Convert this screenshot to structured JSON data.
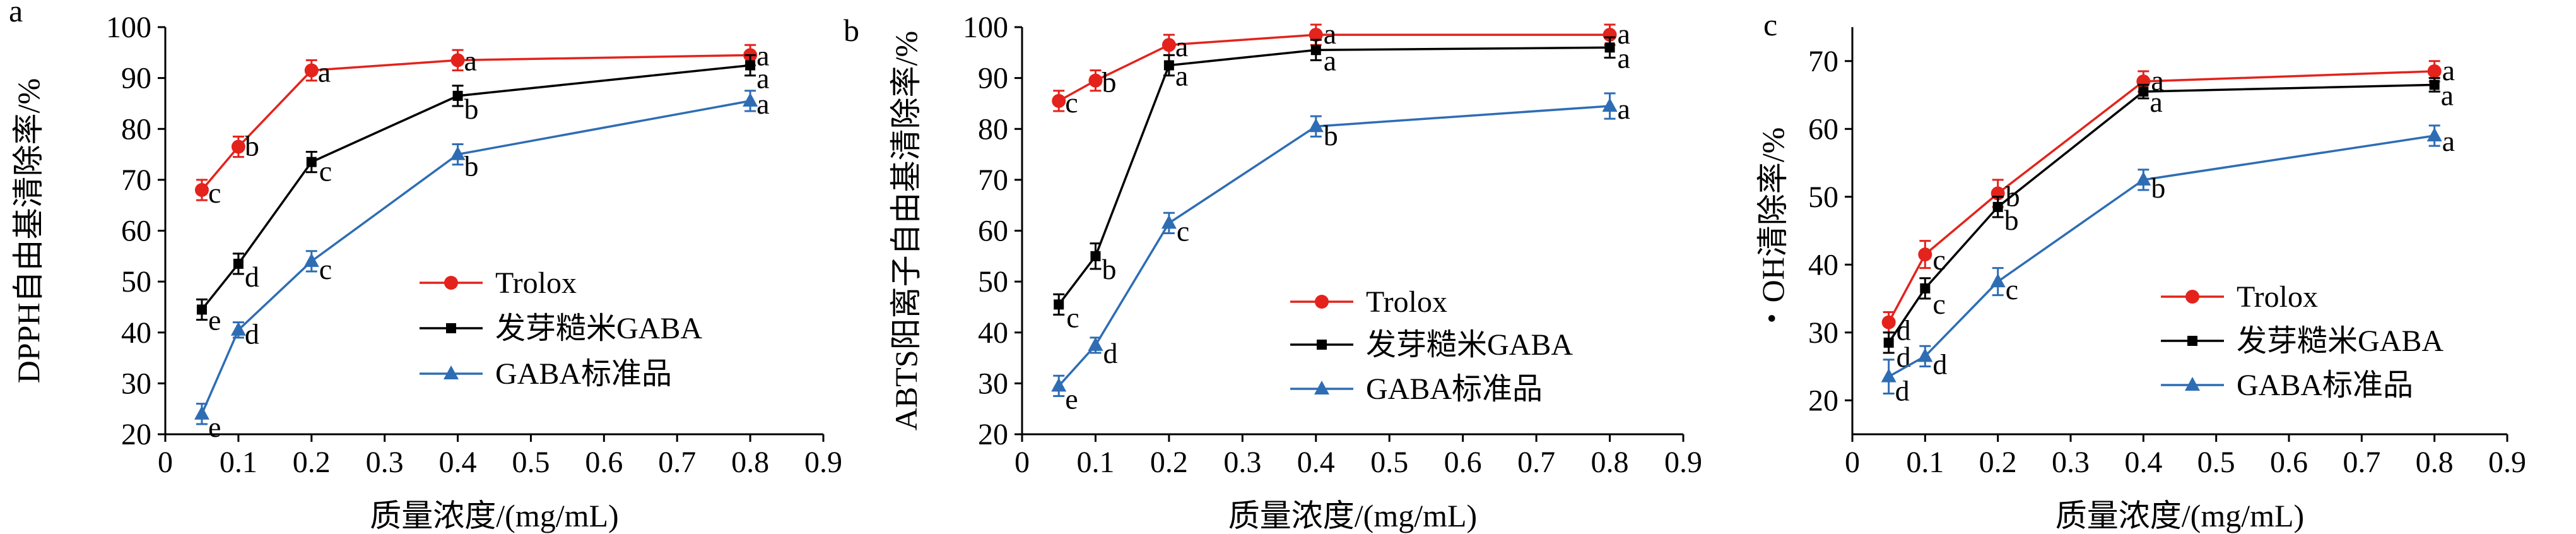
{
  "colors": {
    "Trolox": "#e3231c",
    "sprout": "#000000",
    "gaba": "#2e6db4"
  },
  "legend": [
    "Trolox",
    "发芽糙米GABA",
    "GABA标准品"
  ],
  "chart_data": [
    {
      "type": "line",
      "panel_label": "a",
      "xlabel": "质量浓度/(mg/mL)",
      "ylabel": "DPPH自由基清除率/%",
      "xlim": [
        0,
        0.9
      ],
      "ylim": [
        20,
        100
      ],
      "xticks": [
        "0",
        "0.1",
        "0.2",
        "0.3",
        "0.4",
        "0.5",
        "0.6",
        "0.7",
        "0.8",
        "0.9"
      ],
      "yticks": [
        "20",
        "30",
        "40",
        "50",
        "60",
        "70",
        "80",
        "90",
        "100"
      ],
      "x": [
        0.05,
        0.1,
        0.2,
        0.4,
        0.8
      ],
      "series": [
        {
          "name": "Trolox",
          "values": [
            68,
            76.5,
            91.5,
            93.5,
            94.5
          ],
          "errors": [
            2,
            2,
            2,
            2,
            2
          ],
          "letters": [
            "c",
            "b",
            "a",
            "a",
            "a"
          ]
        },
        {
          "name": "发芽糙米GABA",
          "values": [
            44.5,
            53.5,
            73.5,
            86.5,
            92.5
          ],
          "errors": [
            2,
            2,
            2,
            2,
            2
          ],
          "letters": [
            "e",
            "d",
            "c",
            "b",
            "a"
          ]
        },
        {
          "name": "GABA标准品",
          "values": [
            24,
            40.5,
            54,
            75,
            85.5
          ],
          "errors": [
            2,
            1.5,
            2,
            2,
            2
          ],
          "letters": [
            "e",
            "d",
            "c",
            "b",
            "a"
          ]
        }
      ]
    },
    {
      "type": "line",
      "panel_label": "b",
      "xlabel": "质量浓度/(mg/mL)",
      "ylabel": "ABTS阳离子自由基清除率/%",
      "xlim": [
        0,
        0.9
      ],
      "ylim": [
        20,
        100
      ],
      "xticks": [
        "0",
        "0.1",
        "0.2",
        "0.3",
        "0.4",
        "0.5",
        "0.6",
        "0.7",
        "0.8",
        "0.9"
      ],
      "yticks": [
        "20",
        "30",
        "40",
        "50",
        "60",
        "70",
        "80",
        "90",
        "100"
      ],
      "x": [
        0.05,
        0.1,
        0.2,
        0.4,
        0.8
      ],
      "series": [
        {
          "name": "Trolox",
          "values": [
            85.5,
            89.5,
            96.5,
            98.5,
            98.5
          ],
          "errors": [
            2,
            2,
            2,
            2,
            2
          ],
          "letters": [
            "c",
            "b",
            "a",
            "a",
            "a"
          ]
        },
        {
          "name": "发芽糙米GABA",
          "values": [
            45.5,
            55,
            92.5,
            95.5,
            96
          ],
          "errors": [
            2,
            2.5,
            2,
            2,
            2
          ],
          "letters": [
            "c",
            "b",
            "a",
            "a",
            "a"
          ]
        },
        {
          "name": "GABA标准品",
          "values": [
            29.5,
            37.5,
            61.5,
            80.5,
            84.5
          ],
          "errors": [
            2,
            1.5,
            2,
            2,
            2.5
          ],
          "letters": [
            "e",
            "d",
            "c",
            "b",
            "a"
          ]
        }
      ]
    },
    {
      "type": "line",
      "panel_label": "c",
      "xlabel": "质量浓度/(mg/mL)",
      "ylabel": "・OH清除率/%",
      "xlim": [
        0,
        0.9
      ],
      "ylim": [
        15,
        75
      ],
      "xticks": [
        "0",
        "0.1",
        "0.2",
        "0.3",
        "0.4",
        "0.5",
        "0.6",
        "0.7",
        "0.8",
        "0.9"
      ],
      "yticks": [
        "20",
        "30",
        "40",
        "50",
        "60",
        "70"
      ],
      "x": [
        0.05,
        0.1,
        0.2,
        0.4,
        0.8
      ],
      "series": [
        {
          "name": "Trolox",
          "values": [
            31.5,
            41.5,
            50.5,
            67,
            68.5
          ],
          "errors": [
            1.5,
            2,
            2,
            1.5,
            1.5
          ],
          "letters": [
            "d",
            "c",
            "b",
            "a",
            "a"
          ]
        },
        {
          "name": "发芽糙米GABA",
          "values": [
            28.5,
            36.5,
            48.5,
            65.5,
            66.5
          ],
          "errors": [
            1.5,
            1.5,
            1.5,
            1,
            1
          ],
          "letters": [
            "d",
            "c",
            "b",
            "a",
            "a"
          ]
        },
        {
          "name": "GABA标准品",
          "values": [
            23.5,
            26.5,
            37.5,
            52.5,
            59
          ],
          "errors": [
            2.5,
            1.5,
            2,
            1.5,
            1.5
          ],
          "letters": [
            "d",
            "d",
            "c",
            "b",
            "a"
          ]
        }
      ]
    }
  ]
}
